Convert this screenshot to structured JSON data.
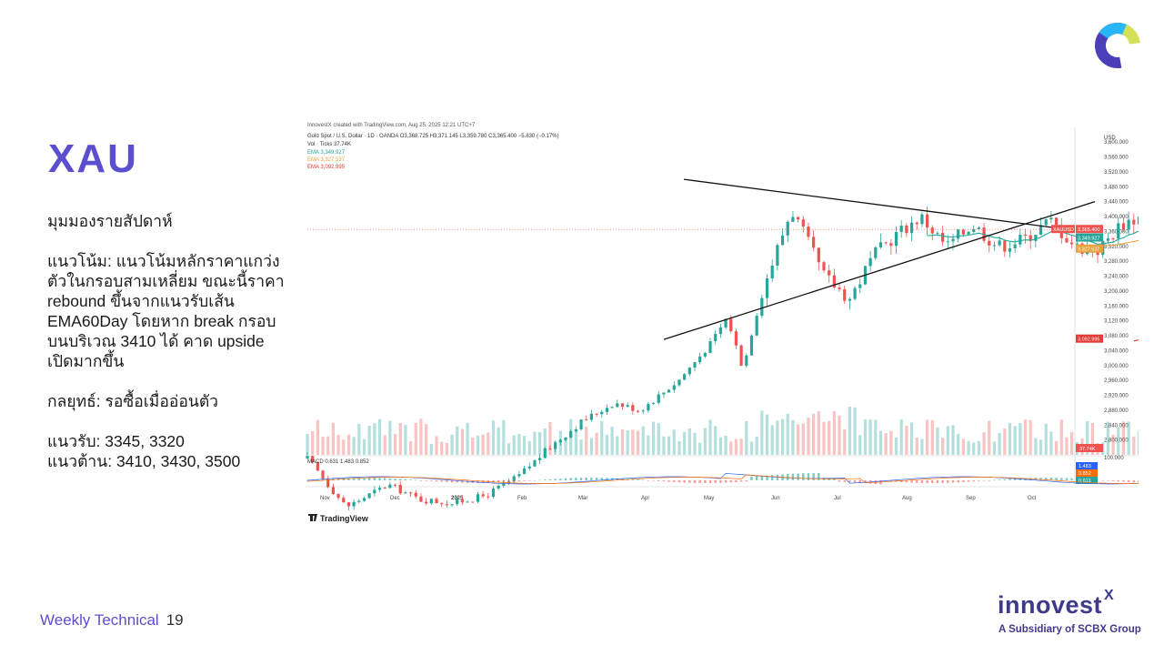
{
  "slide": {
    "title": "XAU",
    "outlook_heading": "มุมมองรายสัปดาห์",
    "trend_text": "แนวโน้ม: แนวโน้มหลักราคาแกว่ง\nตัวในกรอบสามเหลี่ยม ขณะนี้ราคา\nrebound ขึ้นจากแนวรับเส้น\nEMA60Day โดยหาก break กรอบ\nบนบริเวณ 3410 ได้ คาด upside\nเปิดมากขึ้น",
    "strategy_text": "กลยุทธ์: รอซื้อเมื่ออ่อนตัว",
    "support_text": "แนวรับ: 3345, 3320",
    "resistance_text": "แนวต้าน: 3410, 3430, 3500",
    "footer_label": "Weekly Technical",
    "page_number": "19",
    "brand": "innovest",
    "brand_sup": "X",
    "brand_tagline": "A Subsidiary of SCBX Group"
  },
  "colors": {
    "title": "#5b4fd0",
    "brand": "#3f3a8a",
    "candle_up": "#26a69a",
    "candle_down": "#ef5350",
    "ema_short": "#26a69a",
    "ema_mid": "#e6a23c",
    "ema_long": "#e53935"
  },
  "chart_data": {
    "type": "candlestick",
    "header": "InnovestX created with TradingView.com, Aug 25, 2025 12:21 UTC+7",
    "symbol_line": "Gold Spot / U.S. Dollar · 1D · OANDA  O3,368.725  H3,371.145  L3,359.780  C3,365.400  −5.830 (−0.17%)",
    "vol_label": "Vol · Ticks  37.74K",
    "ema_labels": [
      {
        "name": "EMA",
        "value": "3,349.927",
        "color": "#26a69a"
      },
      {
        "name": "EMA",
        "value": "3,327.537",
        "color": "#e6a23c"
      },
      {
        "name": "EMA",
        "value": "3,092.995",
        "color": "#e53935"
      }
    ],
    "currency": "USD",
    "y_ticks": [
      "3,600.000",
      "3,560.000",
      "3,520.000",
      "3,480.000",
      "3,440.000",
      "3,400.000",
      "3,360.000",
      "3,320.000",
      "3,280.000",
      "3,240.000",
      "3,200.000",
      "3,160.000",
      "3,120.000",
      "3,080.000",
      "3,040.000",
      "3,000.000",
      "2,960.000",
      "2,920.000",
      "2,880.000",
      "2,840.000",
      "2,800.000"
    ],
    "ylim": [
      2760,
      3620
    ],
    "x_ticks": [
      "Nov",
      "Dec",
      "2025",
      "Feb",
      "Mar",
      "Apr",
      "May",
      "Jun",
      "Jul",
      "Aug",
      "Sep",
      "Oct"
    ],
    "price_tags": [
      {
        "label": "XAUUSD",
        "value": "3,365.400",
        "sub": "11:38:44",
        "color": "#ef5350",
        "price": 3365.4
      },
      {
        "label": "",
        "value": "3,349.927",
        "color": "#26a69a",
        "price": 3349.9
      },
      {
        "label": "",
        "value": "3,327.537",
        "color": "#e6a23c",
        "price": 3327.5
      },
      {
        "label": "",
        "value": "3,092.995",
        "color": "#e53935",
        "price": 3093.0
      }
    ],
    "vol_tag": "37.74K",
    "macd_label": "MACD  0.631  1.483  0.852",
    "macd_tags": [
      {
        "value": "1.483",
        "color": "#2962ff"
      },
      {
        "value": "0.852",
        "color": "#ff6d00"
      },
      {
        "value": "0.631",
        "color": "#26a69a"
      }
    ],
    "macd_top_tick": "100.000",
    "triangle": {
      "upper": {
        "from": [
          "Apr 22",
          3500
        ],
        "to": [
          "Sep 5",
          3363
        ]
      },
      "lower": {
        "from": [
          "Apr 11",
          3070
        ],
        "to": [
          "Sep 5",
          3440
        ]
      }
    },
    "close_series": [
      {
        "month": "Nov",
        "value": 2660
      },
      {
        "month": "Dec",
        "value": 2640
      },
      {
        "month": "2025",
        "value": 2630
      },
      {
        "month": "Feb",
        "value": 2800
      },
      {
        "month": "Mar",
        "value": 2880
      },
      {
        "month": "Apr",
        "value": 3080
      },
      {
        "month": "Apr",
        "value": 3430
      },
      {
        "month": "May",
        "value": 3240
      },
      {
        "month": "Jun",
        "value": 3380
      },
      {
        "month": "Jul",
        "value": 3340
      },
      {
        "month": "Aug",
        "value": 3360
      },
      {
        "month": "Aug",
        "value": 3365
      }
    ],
    "watermark": "TradingView"
  }
}
